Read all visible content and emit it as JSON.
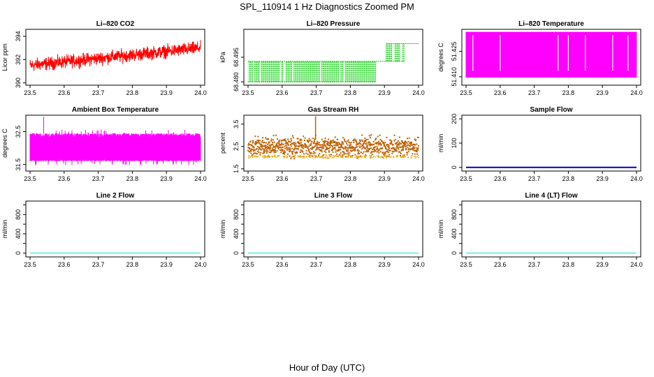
{
  "figure": {
    "title": "SPL_110914  1 Hz Diagnostics Zoomed PM",
    "xlabel": "Hour of Day (UTC)"
  },
  "chart_data": [
    {
      "id": "co2",
      "type": "line",
      "title": "Li–820 CO2",
      "ylabel": "Licor ppm",
      "xlim": [
        23.5,
        24.0
      ],
      "ylim": [
        389.8,
        394.6
      ],
      "xticks": [
        "23.5",
        "23.6",
        "23.7",
        "23.8",
        "23.9",
        "24.0"
      ],
      "xtick_values": [
        23.5,
        23.6,
        23.7,
        23.8,
        23.9,
        24.0
      ],
      "yticks": [
        "390",
        "392",
        "394"
      ],
      "ytick_values": [
        390,
        392,
        394
      ],
      "color": "#ff0000",
      "style": "noisy-line",
      "series": [
        {
          "name": "CO2",
          "x": [
            23.5,
            24.0
          ],
          "mean": [
            391.5,
            393.0
          ],
          "noise": 0.45
        }
      ]
    },
    {
      "id": "pressure",
      "type": "line",
      "title": "Li–820 Pressure",
      "ylabel": "kPa",
      "xlim": [
        23.5,
        24.0
      ],
      "ylim": [
        68.478,
        68.512
      ],
      "xticks": [
        "23.5",
        "23.6",
        "23.7",
        "23.8",
        "23.9",
        "24.0"
      ],
      "xtick_values": [
        23.5,
        23.6,
        23.7,
        23.8,
        23.9,
        24.0
      ],
      "yticks": [
        "68.480",
        "68.495"
      ],
      "ytick_values": [
        68.48,
        68.495
      ],
      "color": "#00cc00",
      "style": "step-dense",
      "series": [
        {
          "name": "Pressure",
          "levels": [
            68.48,
            68.4925,
            68.5033
          ],
          "segments": [
            [
              23.5,
              23.875,
              [
                0,
                1
              ]
            ],
            [
              23.875,
              23.905,
              [
                1
              ]
            ],
            [
              23.905,
              23.96,
              [
                1,
                2
              ]
            ],
            [
              23.96,
              24.0,
              [
                2
              ]
            ]
          ]
        }
      ]
    },
    {
      "id": "licor-temp",
      "type": "line",
      "title": "Li–820 Temperature",
      "ylabel": "degrees C",
      "xlim": [
        23.5,
        24.0
      ],
      "ylim": [
        51.405,
        51.438
      ],
      "xticks": [
        "23.5",
        "23.6",
        "23.7",
        "23.8",
        "23.9",
        "24.0"
      ],
      "xtick_values": [
        23.5,
        23.6,
        23.7,
        23.8,
        23.9,
        24.0
      ],
      "yticks": [
        "51.410",
        "51.425"
      ],
      "ytick_values": [
        51.41,
        51.425
      ],
      "color": "#ff00ff",
      "style": "band",
      "series": [
        {
          "name": "Temperature",
          "low": 51.4095,
          "high": 51.4365,
          "gaps": [
            23.52,
            23.6,
            23.77,
            23.8,
            23.85,
            23.93,
            23.975
          ]
        }
      ]
    },
    {
      "id": "box-temp",
      "type": "line",
      "title": "Ambient Box Temperature",
      "ylabel": "degrees C",
      "xlim": [
        23.5,
        24.0
      ],
      "ylim": [
        31.3,
        33.0
      ],
      "xticks": [
        "23.5",
        "23.6",
        "23.7",
        "23.8",
        "23.9",
        "24.0"
      ],
      "xtick_values": [
        23.5,
        23.6,
        23.7,
        23.8,
        23.9,
        24.0
      ],
      "yticks": [
        "31.5",
        "32.5"
      ],
      "ytick_values": [
        31.5,
        32.5
      ],
      "color": "#ff00ff",
      "style": "band-noisy",
      "series": [
        {
          "name": "Box Temp",
          "low": 31.6,
          "high": 32.45,
          "spike": [
            23.54,
            32.95
          ]
        }
      ]
    },
    {
      "id": "rh",
      "type": "scatter",
      "title": "Gas Stream RH",
      "ylabel": "percent",
      "xlim": [
        23.5,
        24.0
      ],
      "ylim": [
        1.4,
        3.9
      ],
      "xticks": [
        "23.5",
        "23.6",
        "23.7",
        "23.8",
        "23.9",
        "24.0"
      ],
      "xtick_values": [
        23.5,
        23.6,
        23.7,
        23.8,
        23.9,
        24.0
      ],
      "yticks": [
        "1.5",
        "2.5",
        "3.5"
      ],
      "ytick_values": [
        1.5,
        2.5,
        3.5
      ],
      "color": "#e8a000",
      "edge": "#c06000",
      "style": "dots",
      "series": [
        {
          "name": "RH",
          "x": [
            23.5,
            24.0
          ],
          "mean": [
            2.5,
            2.5
          ],
          "noise": 0.35,
          "spike": [
            23.698,
            3.85
          ]
        }
      ]
    },
    {
      "id": "sample-flow",
      "type": "line",
      "title": "Sample Flow",
      "ylabel": "ml/min",
      "xlim": [
        23.5,
        24.0
      ],
      "ylim": [
        -15,
        215
      ],
      "xticks": [
        "23.5",
        "23.6",
        "23.7",
        "23.8",
        "23.9",
        "24.0"
      ],
      "xtick_values": [
        23.5,
        23.6,
        23.7,
        23.8,
        23.9,
        24.0
      ],
      "yticks": [
        "0",
        "100",
        "200"
      ],
      "ytick_values": [
        0,
        100,
        200
      ],
      "color": "#0000cc",
      "style": "flat-thick",
      "series": [
        {
          "name": "Sample Flow",
          "x": [
            23.5,
            24.0
          ],
          "y": [
            0,
            0
          ]
        }
      ]
    },
    {
      "id": "line2",
      "type": "line",
      "title": "Line 2 Flow",
      "ylabel": "ml/min",
      "xlim": [
        23.5,
        24.0
      ],
      "ylim": [
        -80,
        1080
      ],
      "xticks": [
        "23.5",
        "23.6",
        "23.7",
        "23.8",
        "23.9",
        "24.0"
      ],
      "xtick_values": [
        23.5,
        23.6,
        23.7,
        23.8,
        23.9,
        24.0
      ],
      "yticks": [
        "0",
        "400",
        "800"
      ],
      "ytick_values": [
        0,
        400,
        800
      ],
      "minor_yticks": [
        200,
        600,
        1000
      ],
      "color": "#00e5e5",
      "style": "flat",
      "series": [
        {
          "name": "Line 2",
          "x": [
            23.5,
            24.0
          ],
          "y": [
            0,
            0
          ]
        }
      ]
    },
    {
      "id": "line3",
      "type": "line",
      "title": "Line 3 Flow",
      "ylabel": "ml/min",
      "xlim": [
        23.5,
        24.0
      ],
      "ylim": [
        -80,
        1080
      ],
      "xticks": [
        "23.5",
        "23.6",
        "23.7",
        "23.8",
        "23.9",
        "24.0"
      ],
      "xtick_values": [
        23.5,
        23.6,
        23.7,
        23.8,
        23.9,
        24.0
      ],
      "yticks": [
        "0",
        "400",
        "800"
      ],
      "ytick_values": [
        0,
        400,
        800
      ],
      "minor_yticks": [
        200,
        600,
        1000
      ],
      "color": "#00e5e5",
      "style": "flat",
      "series": [
        {
          "name": "Line 3",
          "x": [
            23.5,
            24.0
          ],
          "y": [
            0,
            0
          ]
        }
      ]
    },
    {
      "id": "line4",
      "type": "line",
      "title": "Line 4 (LT) Flow",
      "ylabel": "ml/min",
      "xlim": [
        23.5,
        24.0
      ],
      "ylim": [
        -80,
        1080
      ],
      "xticks": [
        "23.5",
        "23.6",
        "23.7",
        "23.8",
        "23.9",
        "24.0"
      ],
      "xtick_values": [
        23.5,
        23.6,
        23.7,
        23.8,
        23.9,
        24.0
      ],
      "yticks": [
        "0",
        "400",
        "800"
      ],
      "ytick_values": [
        0,
        400,
        800
      ],
      "minor_yticks": [
        200,
        600,
        1000
      ],
      "color": "#00e5e5",
      "style": "flat",
      "series": [
        {
          "name": "Line 4",
          "x": [
            23.5,
            24.0
          ],
          "y": [
            0,
            0
          ]
        }
      ]
    }
  ]
}
